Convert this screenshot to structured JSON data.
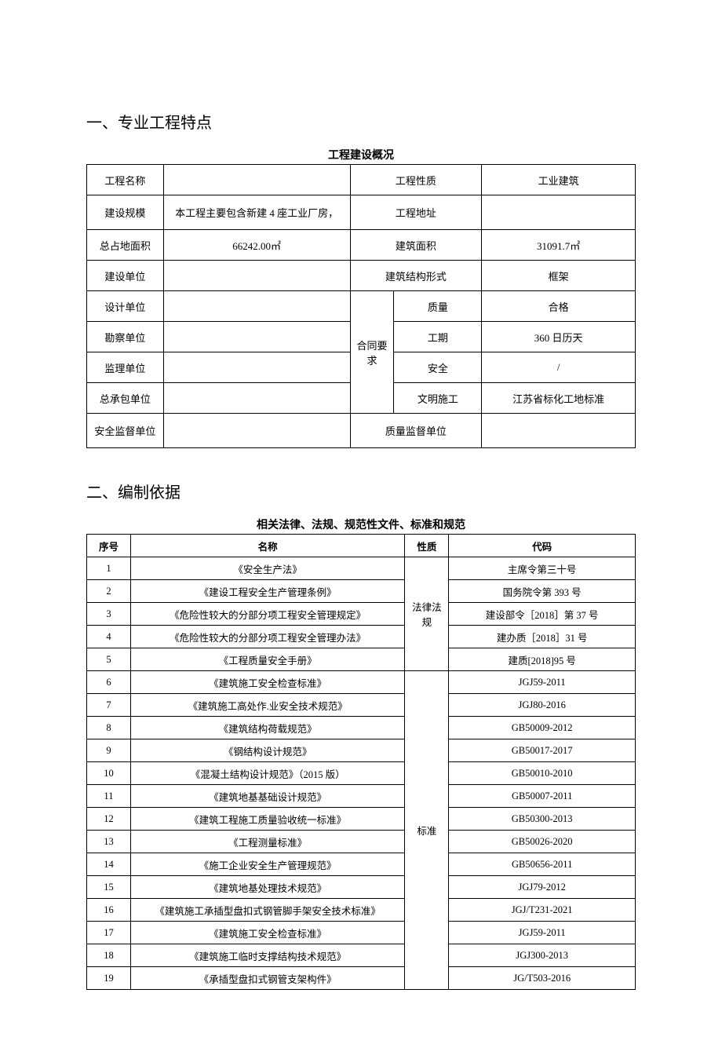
{
  "section1": {
    "heading": "一、专业工程特点",
    "tableTitle": "工程建设概况",
    "rows": {
      "r1": {
        "a": "工程名称",
        "b": "",
        "c": "工程性质",
        "d": "工业建筑"
      },
      "r2": {
        "a": "建设规模",
        "b": "本工程主要包含新建 4 座工业厂房，",
        "c": "工程地址",
        "d": ""
      },
      "r3": {
        "a": "总占地面积",
        "b": "66242.00㎡",
        "c": "建筑面积",
        "d": "31091.7㎡"
      },
      "r4": {
        "a": "建设单位",
        "b": "",
        "c": "建筑结构形式",
        "d": "框架"
      },
      "r5": {
        "a": "设计单位",
        "b": "",
        "mid": "合同要求",
        "c": "质量",
        "d": "合格"
      },
      "r6": {
        "a": "勘察单位",
        "b": "",
        "c": "工期",
        "d": "360 日历天"
      },
      "r7": {
        "a": "监理单位",
        "b": "",
        "c": "安全",
        "d": "/"
      },
      "r8": {
        "a": "总承包单位",
        "b": "",
        "c": "文明施工",
        "d": "江苏省标化工地标准"
      },
      "r9": {
        "a": "安全监督单位",
        "b": "",
        "c": "质量监督单位",
        "d": ""
      }
    }
  },
  "section2": {
    "heading": "二、编制依据",
    "tableTitle": "相关法律、法规、规范性文件、标准和规范",
    "header": {
      "a": "序号",
      "b": "名称",
      "c": "性质",
      "d": "代码"
    },
    "group1": "法律法规",
    "group2": "标准",
    "rows": [
      {
        "n": "1",
        "name": "《安全生产法》",
        "code": "主席令第三十号"
      },
      {
        "n": "2",
        "name": "《建设工程安全生产管理条例》",
        "code": "国务院令第 393 号"
      },
      {
        "n": "3",
        "name": "《危险性较大的分部分项工程安全管理规定》",
        "code": "建设部令［2018］第 37 号"
      },
      {
        "n": "4",
        "name": "《危险性较大的分部分项工程安全管理办法》",
        "code": "建办质［2018］31 号"
      },
      {
        "n": "5",
        "name": "《工程质量安全手册》",
        "code": "建质[2018]95 号"
      },
      {
        "n": "6",
        "name": "《建筑施工安全检查标准》",
        "code": "JGJ59-2011"
      },
      {
        "n": "7",
        "name": "《建筑施工高处作.业安全技术规范》",
        "code": "JGJ80-2016"
      },
      {
        "n": "8",
        "name": "《建筑结构荷载规范》",
        "code": "GB50009-2012"
      },
      {
        "n": "9",
        "name": "《钢结构设计规范》",
        "code": "GB50017-2017"
      },
      {
        "n": "10",
        "name": "《混凝土结构设计规范》（2015 版）",
        "code": "GB50010-2010"
      },
      {
        "n": "11",
        "name": "《建筑地基基础设计规范》",
        "code": "GB50007-2011"
      },
      {
        "n": "12",
        "name": "《建筑工程施工质量验收统一标准》",
        "code": "GB50300-2013"
      },
      {
        "n": "13",
        "name": "《工程测量标准》",
        "code": "GB50026-2020"
      },
      {
        "n": "14",
        "name": "《施工企业安全生产管理规范》",
        "code": "GB50656-2011"
      },
      {
        "n": "15",
        "name": "《建筑地基处理技术规范》",
        "code": "JGJ79-2012"
      },
      {
        "n": "16",
        "name": "《建筑施工承插型盘扣式钢管脚手架安全技术标准》",
        "code": "JGJ/T231-2021"
      },
      {
        "n": "17",
        "name": "《建筑施工安全检查标准》",
        "code": "JGJ59-2011"
      },
      {
        "n": "18",
        "name": "《建筑施工临时支撑结构技术规范》",
        "code": "JGJ300-2013"
      },
      {
        "n": "19",
        "name": "《承插型盘扣式钢管支架构件》",
        "code": "JG/T503-2016"
      }
    ]
  }
}
